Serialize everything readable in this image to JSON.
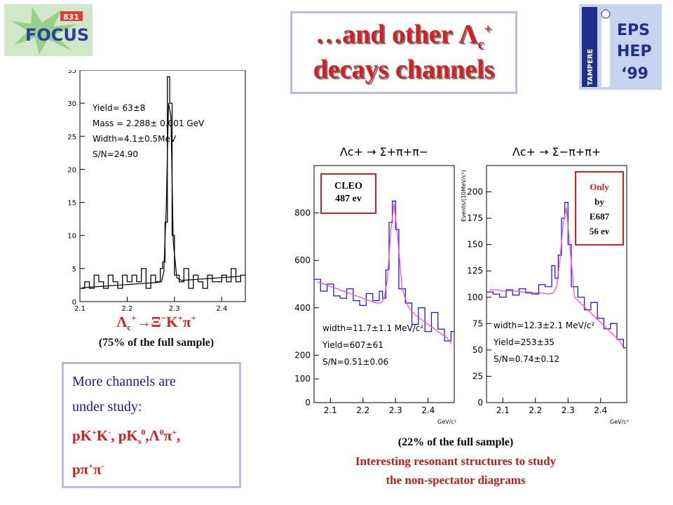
{
  "slide_title": {
    "line1_prefix": "…and other Λ",
    "line1_sub": "c",
    "line1_sup": "+",
    "line2": "decays channels"
  },
  "logos": {
    "focus_text": "FOCUS",
    "focus_badge": "831",
    "eps_text1": "EPS",
    "eps_text2": "HEP",
    "eps_text3": "‘99",
    "eps_vertical": "TAMPERE"
  },
  "left_reaction": "Λc+→Ξ−K+π+",
  "left_caption": "(75% of the full sample)",
  "channels_box": {
    "line1": "More channels are",
    "line2": "under study:",
    "line3": "pK+K-, pKs0,Λ0π+,",
    "line4": "pπ+π-"
  },
  "right_caption": "(22% of the full sample)",
  "right_note_line1": "Interesting resonant structures to study",
  "right_note_line2": "the non-spectator diagrams",
  "cleo_box": {
    "line1": "CLEO",
    "line2": "487 ev"
  },
  "only_box": {
    "line1": "Only",
    "line2": "by",
    "line3": "E687",
    "line4": "56 ev"
  },
  "colors": {
    "title_red": "#d81e1e",
    "box_border": "#b8bde6",
    "fit_magenta": "#ff44cc",
    "fit_blue": "#2020ff"
  },
  "chart_data": [
    {
      "type": "line",
      "panel": "left",
      "stats": [
        "Yield= 63±8",
        "Mass = 2.288± 0.001 GeV",
        "Width=4.1±0.5MeV",
        "S/N=24.90"
      ],
      "xlim": [
        2.1,
        2.45
      ],
      "ylim": [
        0,
        35
      ],
      "x_ticks": [
        "2.1",
        "2.2",
        "2.3",
        "2.4"
      ],
      "y_ticks": [
        "0",
        "5",
        "10",
        "15",
        "20",
        "25",
        "30",
        "35"
      ],
      "xlabel": "",
      "ylabel": "",
      "x": [
        2.1,
        2.11,
        2.12,
        2.13,
        2.14,
        2.15,
        2.16,
        2.17,
        2.18,
        2.19,
        2.2,
        2.21,
        2.22,
        2.23,
        2.24,
        2.25,
        2.26,
        2.27,
        2.275,
        2.28,
        2.285,
        2.29,
        2.295,
        2.3,
        2.31,
        2.32,
        2.33,
        2.34,
        2.35,
        2.36,
        2.37,
        2.38,
        2.39,
        2.4,
        2.41,
        2.42,
        2.43,
        2.44
      ],
      "y": [
        2,
        3,
        2,
        4,
        3,
        2,
        4,
        3,
        2,
        4,
        3,
        4,
        3,
        5,
        2,
        4,
        3,
        5,
        6,
        12,
        34,
        30,
        10,
        4,
        3,
        5,
        2,
        4,
        3,
        2,
        4,
        3,
        3,
        4,
        3,
        5,
        3,
        4
      ],
      "fit_y": [
        2.1,
        2.15,
        2.2,
        2.25,
        2.3,
        2.35,
        2.4,
        2.45,
        2.5,
        2.55,
        2.6,
        2.65,
        2.7,
        2.75,
        2.8,
        2.85,
        2.9,
        3.0,
        4.5,
        14,
        30,
        28,
        9,
        3.6,
        3.2,
        3.25,
        3.3,
        3.35,
        3.4,
        3.45,
        3.5,
        3.55,
        3.6,
        3.65,
        3.7,
        3.75,
        3.8,
        3.85
      ]
    },
    {
      "type": "line",
      "panel": "right-1",
      "title": "Λc+ → Σ+π+π−",
      "stats": [
        "width=11.7±1.1 MeV/c²",
        "Yield=607±61",
        "S/N=0.51±0.06"
      ],
      "xlim": [
        2.05,
        2.48
      ],
      "ylim": [
        0,
        1000
      ],
      "x_ticks": [
        "2.1",
        "2.2",
        "2.3",
        "2.4"
      ],
      "y_ticks": [
        "0",
        "100",
        "200",
        "400",
        "600",
        "800"
      ],
      "y_tick_values": [
        0,
        100,
        200,
        400,
        600,
        800
      ],
      "xlabel": "GeV/c²",
      "ylabel": "",
      "x": [
        2.05,
        2.07,
        2.09,
        2.11,
        2.13,
        2.15,
        2.17,
        2.19,
        2.21,
        2.23,
        2.25,
        2.26,
        2.27,
        2.28,
        2.29,
        2.3,
        2.31,
        2.33,
        2.35,
        2.37,
        2.39,
        2.41,
        2.43,
        2.45,
        2.47
      ],
      "y": [
        520,
        470,
        500,
        450,
        440,
        480,
        430,
        410,
        460,
        430,
        470,
        440,
        560,
        760,
        850,
        730,
        480,
        420,
        330,
        400,
        300,
        380,
        310,
        260,
        300
      ],
      "fit_y": [
        510,
        500,
        490,
        480,
        470,
        460,
        450,
        440,
        430,
        420,
        420,
        440,
        520,
        720,
        840,
        720,
        480,
        400,
        370,
        350,
        330,
        310,
        290,
        270,
        250
      ]
    },
    {
      "type": "line",
      "panel": "right-2",
      "title": "Λc+ → Σ−π+π+",
      "ylabel": "Events/(10MeV/c²)",
      "stats": [
        "width=12.3±2.1 MeV/c²",
        "Yield=253±35",
        "S/N=0.74±0.12"
      ],
      "xlim": [
        2.05,
        2.48
      ],
      "ylim": [
        0,
        225
      ],
      "x_ticks": [
        "2.1",
        "2.2",
        "2.3",
        "2.4"
      ],
      "y_ticks": [
        "0",
        "25",
        "50",
        "75",
        "100",
        "125",
        "150",
        "175",
        "200"
      ],
      "xlabel": "GeV/c²",
      "x": [
        2.05,
        2.07,
        2.09,
        2.11,
        2.13,
        2.15,
        2.17,
        2.19,
        2.21,
        2.23,
        2.25,
        2.26,
        2.27,
        2.28,
        2.29,
        2.3,
        2.31,
        2.33,
        2.35,
        2.37,
        2.39,
        2.41,
        2.43,
        2.45,
        2.47
      ],
      "y": [
        105,
        103,
        100,
        107,
        102,
        108,
        104,
        103,
        112,
        110,
        130,
        118,
        140,
        175,
        190,
        150,
        110,
        100,
        88,
        95,
        80,
        70,
        75,
        60,
        52
      ],
      "fit_y": [
        107,
        107,
        106,
        106,
        106,
        105,
        105,
        104,
        104,
        103,
        104,
        110,
        135,
        170,
        185,
        150,
        100,
        94,
        88,
        82,
        76,
        70,
        64,
        58,
        52
      ]
    }
  ]
}
